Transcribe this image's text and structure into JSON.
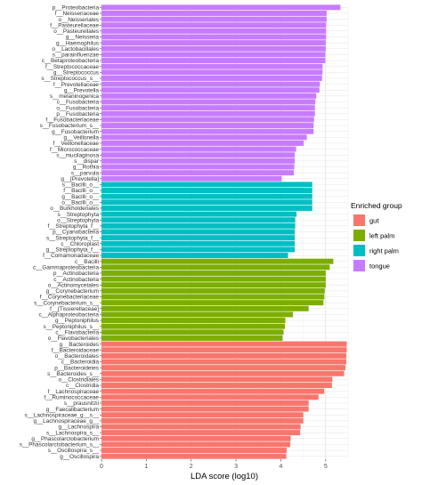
{
  "chart_data": {
    "type": "bar",
    "orientation": "horizontal",
    "title": "",
    "xlabel": "LDA score (log10)",
    "ylabel": "",
    "xlim": [
      0,
      5.5
    ],
    "x_ticks": [
      "0",
      "1",
      "2",
      "3",
      "4",
      "5"
    ],
    "grid": true,
    "legend": {
      "title": "Enriched group",
      "placement": "right",
      "entries": [
        {
          "name": "gut",
          "color": "#F8766D"
        },
        {
          "name": "left palm",
          "color": "#7CAE00"
        },
        {
          "name": "right palm",
          "color": "#00BFC4"
        },
        {
          "name": "tongue",
          "color": "#C77CFF"
        }
      ]
    },
    "bars": [
      {
        "label": "p__Proteobacteria",
        "value": 5.33,
        "group": "tongue"
      },
      {
        "label": "f__Neisseriaceae",
        "value": 5.02,
        "group": "tongue"
      },
      {
        "label": "o__Neisseriales",
        "value": 5.02,
        "group": "tongue"
      },
      {
        "label": "f__Pasteurellaceae",
        "value": 5.01,
        "group": "tongue"
      },
      {
        "label": "o__Pasteurellales",
        "value": 5.01,
        "group": "tongue"
      },
      {
        "label": "g__Neisseria",
        "value": 5.01,
        "group": "tongue"
      },
      {
        "label": "g__Haemophilus",
        "value": 5.0,
        "group": "tongue"
      },
      {
        "label": "o__Lactobacillales",
        "value": 5.0,
        "group": "tongue"
      },
      {
        "label": "s__parainfluenzae",
        "value": 4.99,
        "group": "tongue"
      },
      {
        "label": "c__Betaproteobacteria",
        "value": 4.99,
        "group": "tongue"
      },
      {
        "label": "f__Streptococcaceae",
        "value": 4.93,
        "group": "tongue"
      },
      {
        "label": "g__Streptococcus",
        "value": 4.93,
        "group": "tongue"
      },
      {
        "label": "s__Streptococcus_s__",
        "value": 4.92,
        "group": "tongue"
      },
      {
        "label": "f__Prevotellaceae",
        "value": 4.87,
        "group": "tongue"
      },
      {
        "label": "g__Prevotella",
        "value": 4.86,
        "group": "tongue"
      },
      {
        "label": "s__melaninogenica",
        "value": 4.79,
        "group": "tongue"
      },
      {
        "label": "c__Fusobacteria",
        "value": 4.77,
        "group": "tongue"
      },
      {
        "label": "o__Fusobacteria",
        "value": 4.76,
        "group": "tongue"
      },
      {
        "label": "p__Fusobacteria",
        "value": 4.76,
        "group": "tongue"
      },
      {
        "label": "f__Fusobacteriaceae",
        "value": 4.74,
        "group": "tongue"
      },
      {
        "label": "s__Fusobacterium_s__",
        "value": 4.73,
        "group": "tongue"
      },
      {
        "label": "g__Fusobacterium",
        "value": 4.73,
        "group": "tongue"
      },
      {
        "label": "g__Veillonella",
        "value": 4.58,
        "group": "tongue"
      },
      {
        "label": "f__Veillonellaceae",
        "value": 4.51,
        "group": "tongue"
      },
      {
        "label": "f__Micrococcaceae",
        "value": 4.34,
        "group": "tongue"
      },
      {
        "label": "s__mucilaginosa",
        "value": 4.31,
        "group": "tongue"
      },
      {
        "label": "s__dispar",
        "value": 4.31,
        "group": "tongue"
      },
      {
        "label": "g__Rothia",
        "value": 4.3,
        "group": "tongue"
      },
      {
        "label": "s__parvula",
        "value": 4.29,
        "group": "tongue"
      },
      {
        "label": "g__[Prevotella]",
        "value": 4.02,
        "group": "tongue"
      },
      {
        "label": "s__Bacilli_o__",
        "value": 4.7,
        "group": "right palm"
      },
      {
        "label": "f__Bacilli_o__",
        "value": 4.7,
        "group": "right palm"
      },
      {
        "label": "g__Bacilli_o__",
        "value": 4.7,
        "group": "right palm"
      },
      {
        "label": "o__Bacilli_o__",
        "value": 4.7,
        "group": "right palm"
      },
      {
        "label": "o__Burkholderiales",
        "value": 4.7,
        "group": "right palm"
      },
      {
        "label": "s__Streptophyta",
        "value": 4.35,
        "group": "right palm"
      },
      {
        "label": "o__Streptophyta",
        "value": 4.32,
        "group": "right palm"
      },
      {
        "label": "f__Streptophyta_f__",
        "value": 4.32,
        "group": "right palm"
      },
      {
        "label": "p__Cyanobacteria",
        "value": 4.31,
        "group": "right palm"
      },
      {
        "label": "s__Streptophyta_f__",
        "value": 4.31,
        "group": "right palm"
      },
      {
        "label": "c__Chloroplast",
        "value": 4.31,
        "group": "right palm"
      },
      {
        "label": "g__Streptophyta_f__",
        "value": 4.31,
        "group": "right palm"
      },
      {
        "label": "f__Comamonadaceae",
        "value": 4.16,
        "group": "right palm"
      },
      {
        "label": "c__Bacilli",
        "value": 5.17,
        "group": "left palm"
      },
      {
        "label": "c__Gammaproteobacteria",
        "value": 5.09,
        "group": "left palm"
      },
      {
        "label": "p__Actinobacteria",
        "value": 5.0,
        "group": "left palm"
      },
      {
        "label": "c__Actinobacteria",
        "value": 5.0,
        "group": "left palm"
      },
      {
        "label": "o__Actinomycetales",
        "value": 5.0,
        "group": "left palm"
      },
      {
        "label": "g__Corynebacterium",
        "value": 4.98,
        "group": "left palm"
      },
      {
        "label": "f__Corynebacteriaceae",
        "value": 4.97,
        "group": "left palm"
      },
      {
        "label": "s__Corynebacterium_s__",
        "value": 4.95,
        "group": "left palm"
      },
      {
        "label": "f__[Tissierellaceae]",
        "value": 4.62,
        "group": "left palm"
      },
      {
        "label": "c__Alphaproteobacteria",
        "value": 4.27,
        "group": "left palm"
      },
      {
        "label": "g__Peptoniphilus",
        "value": 4.1,
        "group": "left palm"
      },
      {
        "label": "s__Peptoniphilus_s__",
        "value": 4.09,
        "group": "left palm"
      },
      {
        "label": "c__Flavobacteria",
        "value": 4.06,
        "group": "left palm"
      },
      {
        "label": "o__Flavobacteriales",
        "value": 4.04,
        "group": "left palm"
      },
      {
        "label": "g__Bacteroides",
        "value": 5.47,
        "group": "gut"
      },
      {
        "label": "f__Bacteroidaceae",
        "value": 5.47,
        "group": "gut"
      },
      {
        "label": "o__Bacteroidales",
        "value": 5.46,
        "group": "gut"
      },
      {
        "label": "c__Bacteroidia",
        "value": 5.46,
        "group": "gut"
      },
      {
        "label": "p__Bacteroidetes",
        "value": 5.44,
        "group": "gut"
      },
      {
        "label": "s__Bacteroides_s__",
        "value": 5.41,
        "group": "gut"
      },
      {
        "label": "o__Clostridiales",
        "value": 5.15,
        "group": "gut"
      },
      {
        "label": "c__Clostridia",
        "value": 5.14,
        "group": "gut"
      },
      {
        "label": "f__Lachnospiraceae",
        "value": 4.97,
        "group": "gut"
      },
      {
        "label": "f__Ruminococcaceae",
        "value": 4.84,
        "group": "gut"
      },
      {
        "label": "s__prausnitzii",
        "value": 4.62,
        "group": "gut"
      },
      {
        "label": "g__Faecalibacterium",
        "value": 4.62,
        "group": "gut"
      },
      {
        "label": "s__Lachnospiraceae_g__s__",
        "value": 4.5,
        "group": "gut"
      },
      {
        "label": "g__Lachnospiraceae_g__",
        "value": 4.5,
        "group": "gut"
      },
      {
        "label": "g__Lachnospira",
        "value": 4.44,
        "group": "gut"
      },
      {
        "label": "s__Lachnospira_s__",
        "value": 4.43,
        "group": "gut"
      },
      {
        "label": "g__Phascolarctobacterium",
        "value": 4.22,
        "group": "gut"
      },
      {
        "label": "s__Phascolarctobacterium_s__",
        "value": 4.21,
        "group": "gut"
      },
      {
        "label": "s__Oscillospira_s__",
        "value": 4.13,
        "group": "gut"
      },
      {
        "label": "g__Oscillospira",
        "value": 4.12,
        "group": "gut"
      }
    ]
  }
}
